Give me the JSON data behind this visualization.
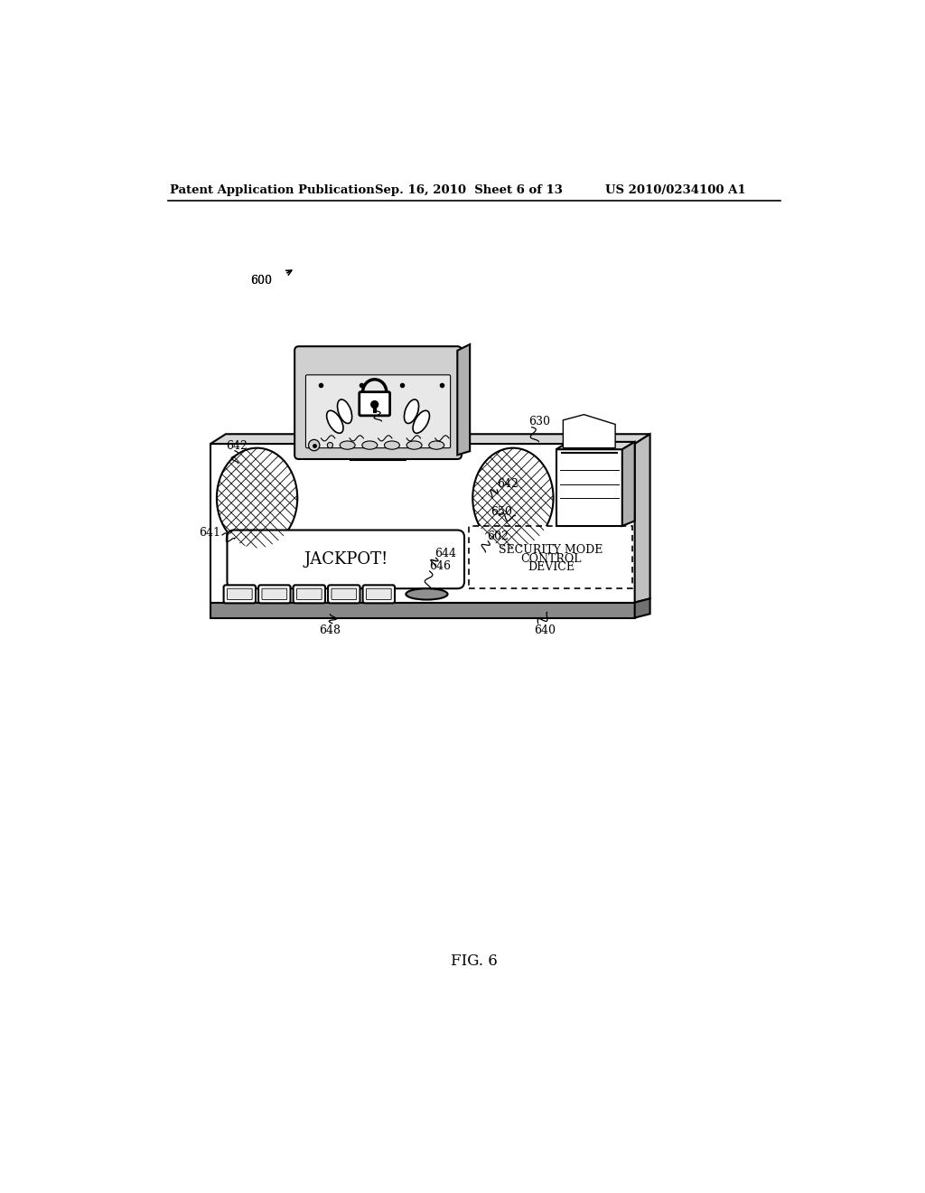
{
  "title_line1": "Patent Application Publication",
  "title_line2": "Sep. 16, 2010  Sheet 6 of 13",
  "title_line3": "US 2010/0234100 A1",
  "fig_label": "FIG. 6",
  "background_color": "#ffffff",
  "line_color": "#000000"
}
